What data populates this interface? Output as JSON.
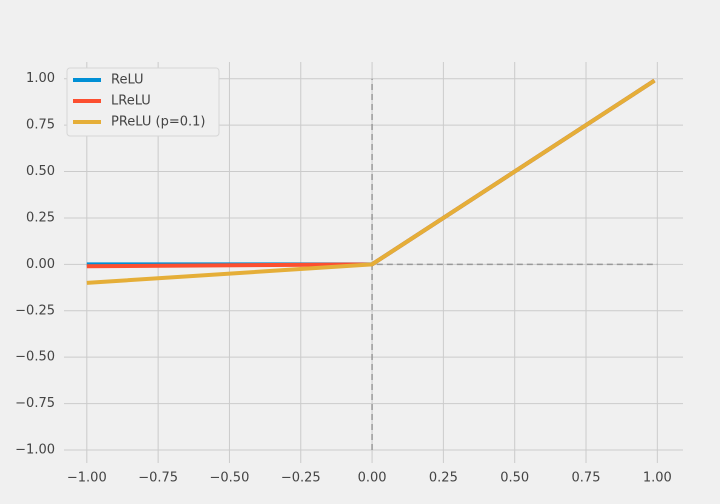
{
  "chart_data": {
    "type": "line",
    "x": [
      -1,
      0,
      0.99
    ],
    "series": [
      {
        "name": "ReLU",
        "color": "#008fd5",
        "values": [
          0,
          0,
          0.99
        ]
      },
      {
        "name": "LReLU",
        "color": "#fc4f30",
        "values": [
          -0.01,
          0,
          0.99
        ]
      },
      {
        "name": "PReLU (p=0.1)",
        "color": "#e5ae38",
        "values": [
          -0.1,
          0,
          0.99
        ]
      }
    ],
    "reference_lines": [
      {
        "axis": "y",
        "value": 0,
        "from": -1,
        "to": 1
      },
      {
        "axis": "x",
        "value": 0,
        "from": -1,
        "to": 1
      }
    ],
    "xlim": [
      -1.08,
      1.09
    ],
    "ylim": [
      -1.07,
      1.09
    ],
    "xticks": [
      {
        "value": -1,
        "label": "−1.00"
      },
      {
        "value": -0.75,
        "label": "−0.75"
      },
      {
        "value": -0.5,
        "label": "−0.50"
      },
      {
        "value": -0.25,
        "label": "−0.25"
      },
      {
        "value": 0,
        "label": "0.00"
      },
      {
        "value": 0.25,
        "label": "0.25"
      },
      {
        "value": 0.5,
        "label": "0.50"
      },
      {
        "value": 0.75,
        "label": "0.75"
      },
      {
        "value": 1,
        "label": "1.00"
      }
    ],
    "yticks": [
      {
        "value": -1,
        "label": "−1.00"
      },
      {
        "value": -0.75,
        "label": "−0.75"
      },
      {
        "value": -0.5,
        "label": "−0.50"
      },
      {
        "value": -0.25,
        "label": "−0.25"
      },
      {
        "value": 0,
        "label": "0.00"
      },
      {
        "value": 0.25,
        "label": "0.25"
      },
      {
        "value": 0.5,
        "label": "0.50"
      },
      {
        "value": 0.75,
        "label": "0.75"
      },
      {
        "value": 1,
        "label": "1.00"
      }
    ],
    "grid": true,
    "legend": "upper-left"
  }
}
